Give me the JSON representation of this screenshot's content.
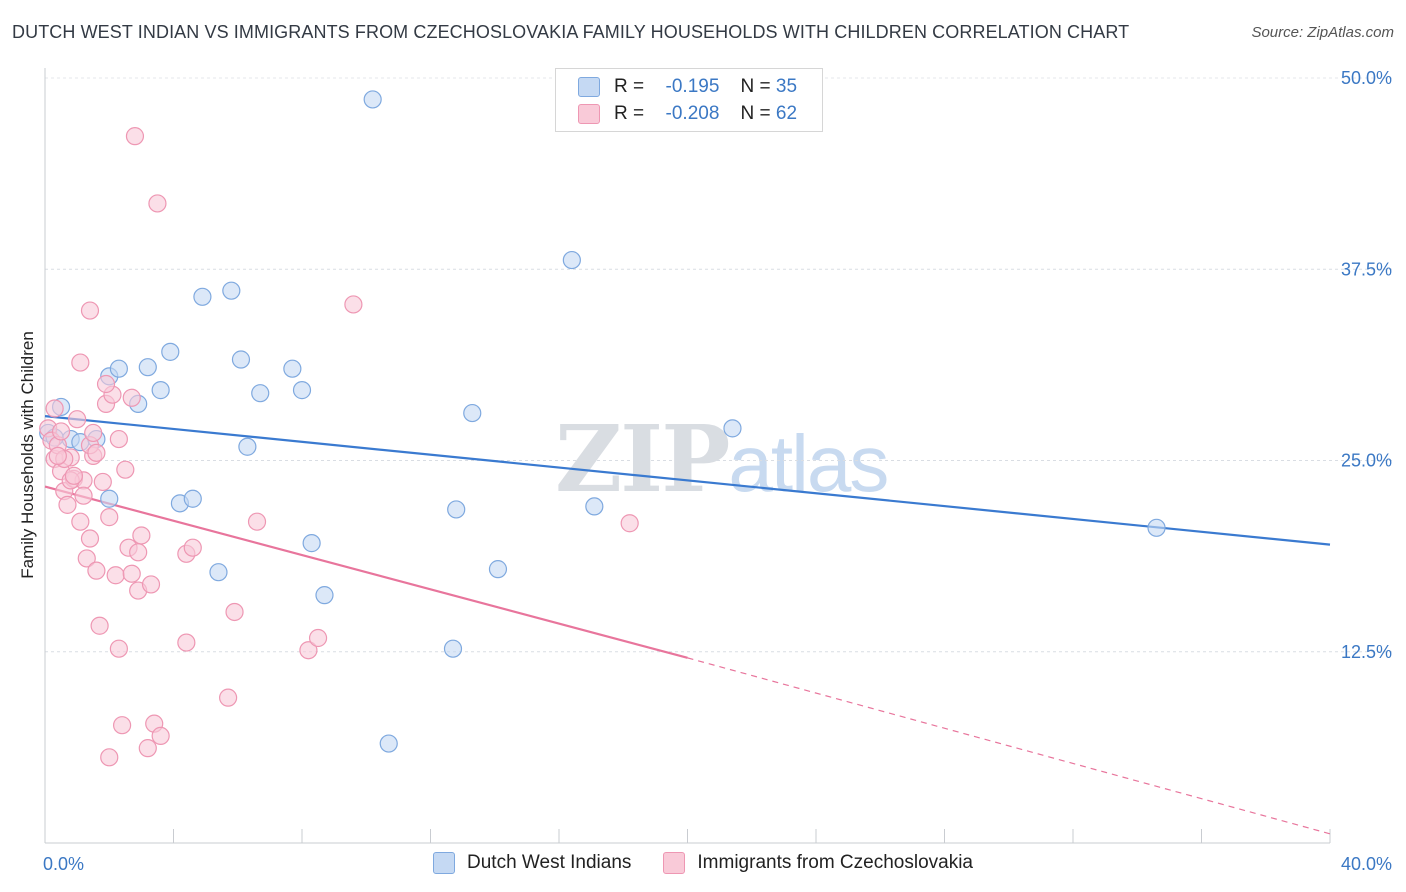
{
  "title": "DUTCH WEST INDIAN VS IMMIGRANTS FROM CZECHOSLOVAKIA FAMILY HOUSEHOLDS WITH CHILDREN CORRELATION CHART",
  "source": "Source: ZipAtlas.com",
  "watermark": {
    "zip": "ZIP",
    "atlas": "atlas"
  },
  "legend": {
    "items": [
      {
        "r_label": "R =",
        "r_value": "-0.195",
        "n_label": "N =",
        "n_value": "35",
        "color": "#a8c8f0"
      },
      {
        "r_label": "R =",
        "r_value": "-0.208",
        "n_label": "N =",
        "n_value": "62",
        "color": "#f6b8ca"
      }
    ]
  },
  "colors": {
    "blue_fill": "#c5d9f3",
    "blue_stroke": "#7fa9df",
    "blue_line": "#3a7ad0",
    "pink_fill": "#f9cad8",
    "pink_stroke": "#ee97b3",
    "pink_line": "#e8759c",
    "axis_label": "#3b78c4"
  },
  "chart_data": {
    "type": "scatter",
    "title": "DUTCH WEST INDIAN VS IMMIGRANTS FROM CZECHOSLOVAKIA FAMILY HOUSEHOLDS WITH CHILDREN CORRELATION CHART",
    "xlabel": "",
    "ylabel": "Family Households with Children",
    "xlim": [
      0,
      40
    ],
    "ylim": [
      0,
      50
    ],
    "x_tick_labels": [
      "0.0%",
      "40.0%"
    ],
    "y_tick_labels": [
      "12.5%",
      "25.0%",
      "37.5%",
      "50.0%"
    ],
    "y_ticks": [
      12.5,
      25.0,
      37.5,
      50.0
    ],
    "grid": true,
    "legend_position": "top-center",
    "series": [
      {
        "name": "Dutch West Indians",
        "points": [
          [
            0.1,
            26.8
          ],
          [
            0.5,
            28.5
          ],
          [
            0.8,
            26.4
          ],
          [
            1.1,
            26.2
          ],
          [
            1.6,
            26.4
          ],
          [
            2.0,
            30.5
          ],
          [
            2.3,
            31.0
          ],
          [
            2.9,
            28.7
          ],
          [
            3.2,
            31.1
          ],
          [
            3.6,
            29.6
          ],
          [
            3.9,
            32.1
          ],
          [
            4.2,
            22.2
          ],
          [
            4.6,
            22.5
          ],
          [
            4.9,
            35.7
          ],
          [
            5.4,
            17.7
          ],
          [
            5.8,
            36.1
          ],
          [
            6.1,
            31.6
          ],
          [
            6.3,
            25.9
          ],
          [
            6.7,
            29.4
          ],
          [
            7.7,
            31.0
          ],
          [
            8.0,
            29.6
          ],
          [
            8.3,
            19.6
          ],
          [
            8.7,
            16.2
          ],
          [
            10.2,
            48.6
          ],
          [
            10.7,
            6.5
          ],
          [
            12.7,
            12.7
          ],
          [
            12.8,
            21.8
          ],
          [
            13.3,
            28.1
          ],
          [
            14.1,
            17.9
          ],
          [
            16.4,
            38.1
          ],
          [
            17.1,
            22.0
          ],
          [
            2.0,
            22.5
          ],
          [
            21.4,
            27.1
          ],
          [
            34.6,
            20.6
          ],
          [
            0.3,
            26.5
          ]
        ],
        "trend": {
          "x": [
            0,
            40
          ],
          "y": [
            27.9,
            19.5
          ]
        }
      },
      {
        "name": "Immigrants from Czechoslovakia",
        "points": [
          [
            0.1,
            27.1
          ],
          [
            0.2,
            26.3
          ],
          [
            0.3,
            25.1
          ],
          [
            0.4,
            26.0
          ],
          [
            0.5,
            24.3
          ],
          [
            0.6,
            23.0
          ],
          [
            0.7,
            22.1
          ],
          [
            0.8,
            25.2
          ],
          [
            0.9,
            23.8
          ],
          [
            1.0,
            27.7
          ],
          [
            1.1,
            31.4
          ],
          [
            1.2,
            23.7
          ],
          [
            1.3,
            18.6
          ],
          [
            1.4,
            34.8
          ],
          [
            1.4,
            19.9
          ],
          [
            1.5,
            25.3
          ],
          [
            1.6,
            17.8
          ],
          [
            1.7,
            14.2
          ],
          [
            1.8,
            23.6
          ],
          [
            1.9,
            28.7
          ],
          [
            2.0,
            21.3
          ],
          [
            2.1,
            29.3
          ],
          [
            2.2,
            17.5
          ],
          [
            2.3,
            12.7
          ],
          [
            2.4,
            7.7
          ],
          [
            2.5,
            24.4
          ],
          [
            2.6,
            19.3
          ],
          [
            2.7,
            17.6
          ],
          [
            2.7,
            29.1
          ],
          [
            2.8,
            46.2
          ],
          [
            2.9,
            16.5
          ],
          [
            2.9,
            19.0
          ],
          [
            3.0,
            20.1
          ],
          [
            3.2,
            6.2
          ],
          [
            3.3,
            16.9
          ],
          [
            3.4,
            7.8
          ],
          [
            3.5,
            41.8
          ],
          [
            3.6,
            7.0
          ],
          [
            4.4,
            13.1
          ],
          [
            4.4,
            18.9
          ],
          [
            4.6,
            19.3
          ],
          [
            5.7,
            9.5
          ],
          [
            5.9,
            15.1
          ],
          [
            6.6,
            21.0
          ],
          [
            8.2,
            12.6
          ],
          [
            8.5,
            13.4
          ],
          [
            9.6,
            35.2
          ],
          [
            18.2,
            20.9
          ],
          [
            0.8,
            23.7
          ],
          [
            1.1,
            21.0
          ],
          [
            0.6,
            25.1
          ],
          [
            1.4,
            26.0
          ],
          [
            1.9,
            30.0
          ],
          [
            2.3,
            26.4
          ],
          [
            0.5,
            26.9
          ],
          [
            1.5,
            26.8
          ],
          [
            2.0,
            5.6
          ],
          [
            0.3,
            28.4
          ],
          [
            1.2,
            22.7
          ],
          [
            0.9,
            24.0
          ],
          [
            1.6,
            25.5
          ],
          [
            0.4,
            25.3
          ]
        ],
        "trend": {
          "x": [
            0,
            20
          ],
          "y": [
            23.3,
            12.1
          ]
        },
        "trend_dashed": {
          "x": [
            20,
            40
          ],
          "y": [
            12.1,
            0.6
          ]
        }
      }
    ]
  }
}
